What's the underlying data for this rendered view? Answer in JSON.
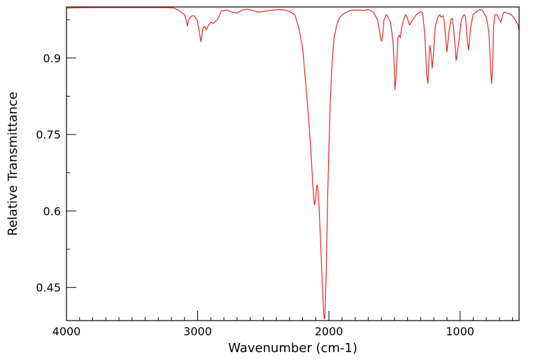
{
  "chart_data": {
    "type": "line",
    "title": "",
    "xlabel": "Wavenumber (cm-1)",
    "ylabel": "Relative Transmittance",
    "xlim": [
      4000,
      550
    ],
    "ylim": [
      0.385,
      1.0
    ],
    "x_ticks": [
      4000,
      3000,
      2000,
      1000
    ],
    "x_tick_labels": [
      "4000",
      "3000",
      "2000",
      "1000"
    ],
    "y_ticks": [
      0.9,
      0.75,
      0.6,
      0.45
    ],
    "y_tick_labels": [
      "0.9",
      "0.75",
      "0.6",
      "0.45"
    ],
    "grid": false,
    "legend": "none",
    "series": [
      {
        "color": "#e8221f",
        "x": [
          4000,
          3800,
          3600,
          3400,
          3250,
          3180,
          3150,
          3100,
          3085,
          3078,
          3070,
          3050,
          3030,
          3005,
          2990,
          2975,
          2960,
          2945,
          2935,
          2920,
          2900,
          2880,
          2850,
          2820,
          2780,
          2740,
          2700,
          2660,
          2620,
          2580,
          2540,
          2500,
          2460,
          2420,
          2380,
          2340,
          2300,
          2260,
          2230,
          2200,
          2180,
          2160,
          2140,
          2130,
          2120,
          2110,
          2100,
          2095,
          2090,
          2085,
          2080,
          2075,
          2070,
          2060,
          2050,
          2040,
          2035,
          2030,
          2020,
          2010,
          2000,
          1990,
          1980,
          1970,
          1960,
          1940,
          1920,
          1900,
          1880,
          1860,
          1840,
          1810,
          1780,
          1740,
          1700,
          1660,
          1630,
          1615,
          1603,
          1597,
          1590,
          1580,
          1560,
          1530,
          1510,
          1502,
          1497,
          1490,
          1480,
          1473,
          1465,
          1455,
          1445,
          1430,
          1415,
          1405,
          1395,
          1385,
          1360,
          1330,
          1300,
          1285,
          1270,
          1262,
          1255,
          1245,
          1237,
          1230,
          1222,
          1213,
          1205,
          1190,
          1170,
          1155,
          1145,
          1130,
          1120,
          1110,
          1100,
          1085,
          1070,
          1060,
          1050,
          1040,
          1030,
          1010,
          990,
          970,
          960,
          952,
          945,
          935,
          920,
          900,
          870,
          850,
          830,
          800,
          780,
          770,
          760,
          752,
          745,
          735,
          720,
          700,
          690,
          680,
          670,
          660,
          640,
          620,
          600,
          580,
          560,
          550
        ],
        "y": [
          0.998,
          0.999,
          0.999,
          0.999,
          0.999,
          0.998,
          0.994,
          0.985,
          0.972,
          0.962,
          0.975,
          0.982,
          0.983,
          0.975,
          0.955,
          0.932,
          0.958,
          0.962,
          0.955,
          0.963,
          0.97,
          0.968,
          0.975,
          0.992,
          0.994,
          0.99,
          0.988,
          0.994,
          0.996,
          0.993,
          0.99,
          0.991,
          0.993,
          0.994,
          0.995,
          0.994,
          0.991,
          0.985,
          0.96,
          0.92,
          0.86,
          0.8,
          0.73,
          0.685,
          0.64,
          0.612,
          0.625,
          0.645,
          0.651,
          0.647,
          0.63,
          0.61,
          0.58,
          0.52,
          0.455,
          0.4,
          0.388,
          0.392,
          0.48,
          0.62,
          0.72,
          0.81,
          0.87,
          0.91,
          0.94,
          0.965,
          0.978,
          0.984,
          0.988,
          0.99,
          0.993,
          0.994,
          0.994,
          0.993,
          0.995,
          0.99,
          0.975,
          0.955,
          0.935,
          0.933,
          0.945,
          0.975,
          0.985,
          0.97,
          0.93,
          0.88,
          0.838,
          0.855,
          0.905,
          0.94,
          0.945,
          0.94,
          0.96,
          0.975,
          0.985,
          0.982,
          0.972,
          0.965,
          0.975,
          0.986,
          0.991,
          0.988,
          0.95,
          0.91,
          0.868,
          0.85,
          0.9,
          0.925,
          0.91,
          0.88,
          0.9,
          0.96,
          0.98,
          0.985,
          0.98,
          0.983,
          0.97,
          0.94,
          0.912,
          0.95,
          0.975,
          0.978,
          0.96,
          0.93,
          0.895,
          0.93,
          0.975,
          0.985,
          0.982,
          0.96,
          0.935,
          0.915,
          0.96,
          0.985,
          0.992,
          0.995,
          0.993,
          0.98,
          0.95,
          0.89,
          0.85,
          0.88,
          0.96,
          0.985,
          0.985,
          0.975,
          0.97,
          0.98,
          0.988,
          0.99,
          0.988,
          0.986,
          0.982,
          0.975,
          0.966,
          0.955
        ]
      }
    ]
  }
}
